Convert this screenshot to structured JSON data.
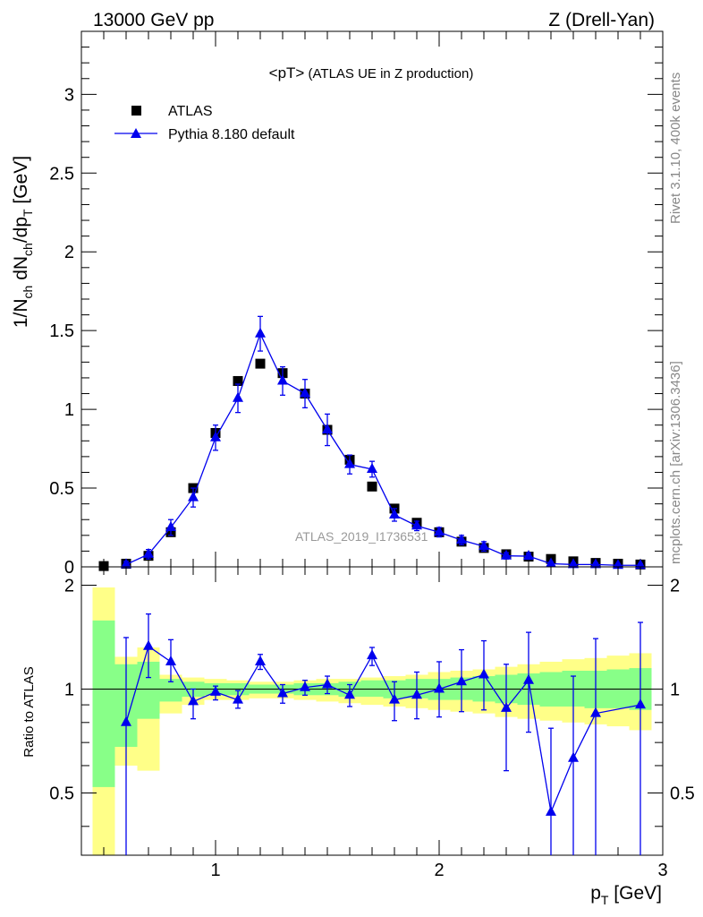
{
  "header": {
    "left": "13000 GeV pp",
    "right": "Z (Drell-Yan)"
  },
  "side_labels": {
    "rivet": "Rivet 3.1.10,  400k events",
    "mcplots": "mcplots.cern.ch [arXiv:1306.3436]"
  },
  "chart_data": [
    {
      "type": "scatter",
      "panel": "main",
      "title_main": "<pT>",
      "title_sub": " (ATLAS UE in Z production)",
      "ylabel": "1/N_ch dN_ch/dp_T [GeV]",
      "watermark": "ATLAS_2019_I1736531",
      "xlim": [
        0.4,
        3.0
      ],
      "ylim": [
        0,
        3.4
      ],
      "yticks": [
        0,
        0.5,
        1,
        1.5,
        2,
        2.5,
        3
      ],
      "ytick_labels": [
        "0",
        "0.5",
        "1",
        "1.5",
        "2",
        "2.5",
        "3"
      ],
      "legend": [
        "ATLAS",
        "Pythia 8.180 default"
      ],
      "legend_position": "top-left",
      "series": [
        {
          "name": "ATLAS",
          "marker": "square",
          "color": "#000000",
          "x": [
            0.5,
            0.6,
            0.7,
            0.8,
            0.9,
            1.0,
            1.1,
            1.2,
            1.3,
            1.4,
            1.5,
            1.6,
            1.7,
            1.8,
            1.9,
            2.0,
            2.1,
            2.2,
            2.3,
            2.4,
            2.5,
            2.6,
            2.7,
            2.8,
            2.9
          ],
          "y": [
            0.005,
            0.02,
            0.07,
            0.22,
            0.5,
            0.85,
            1.18,
            1.29,
            1.23,
            1.1,
            0.87,
            0.68,
            0.51,
            0.37,
            0.28,
            0.22,
            0.16,
            0.12,
            0.08,
            0.065,
            0.05,
            0.035,
            0.025,
            0.02,
            0.015
          ]
        },
        {
          "name": "Pythia 8.180 default",
          "marker": "triangle",
          "color": "#0000ee",
          "x": [
            0.6,
            0.7,
            0.8,
            0.9,
            1.0,
            1.1,
            1.2,
            1.3,
            1.4,
            1.5,
            1.6,
            1.7,
            1.8,
            1.9,
            2.0,
            2.1,
            2.2,
            2.3,
            2.4,
            2.5,
            2.6,
            2.7,
            2.8,
            2.9
          ],
          "y": [
            0.015,
            0.08,
            0.25,
            0.44,
            0.82,
            1.07,
            1.48,
            1.18,
            1.1,
            0.87,
            0.65,
            0.62,
            0.33,
            0.26,
            0.22,
            0.17,
            0.13,
            0.07,
            0.068,
            0.02,
            0.015,
            0.015,
            0.01,
            0.01
          ],
          "yerr": [
            0.02,
            0.03,
            0.05,
            0.06,
            0.08,
            0.09,
            0.11,
            0.09,
            0.09,
            0.1,
            0.06,
            0.05,
            0.04,
            0.03,
            0.03,
            0.03,
            0.03,
            0.02,
            0.02,
            0.01,
            0.01,
            0.01,
            0.01,
            0.01
          ]
        }
      ]
    },
    {
      "type": "scatter",
      "panel": "ratio",
      "ylabel": "Ratio to ATLAS",
      "xlabel": "p_T [GeV]",
      "xlim": [
        0.4,
        3.0
      ],
      "ylim": [
        0.33,
        2.26
      ],
      "yscale": "log",
      "xticks": [
        1,
        2,
        3
      ],
      "xtick_labels": [
        "1",
        "2",
        "3"
      ],
      "yticks": [
        0.5,
        1,
        2
      ],
      "ytick_labels": [
        "0.5",
        "1",
        "2"
      ],
      "reference_line": 1,
      "uncertainty_bands": {
        "bin_edges": [
          0.45,
          0.55,
          0.65,
          0.75,
          0.85,
          0.95,
          1.05,
          1.15,
          1.25,
          1.35,
          1.45,
          1.55,
          1.65,
          1.75,
          1.85,
          1.95,
          2.05,
          2.15,
          2.25,
          2.35,
          2.45,
          2.55,
          2.65,
          2.75,
          2.85,
          2.95
        ],
        "green": [
          [
            0.52,
            1.58
          ],
          [
            0.68,
            1.18
          ],
          [
            0.82,
            1.2
          ],
          [
            0.92,
            1.07
          ],
          [
            0.95,
            1.05
          ],
          [
            0.96,
            1.04
          ],
          [
            0.96,
            1.04
          ],
          [
            0.97,
            1.03
          ],
          [
            0.97,
            1.03
          ],
          [
            0.96,
            1.04
          ],
          [
            0.96,
            1.04
          ],
          [
            0.95,
            1.05
          ],
          [
            0.95,
            1.06
          ],
          [
            0.94,
            1.06
          ],
          [
            0.94,
            1.07
          ],
          [
            0.93,
            1.07
          ],
          [
            0.93,
            1.08
          ],
          [
            0.92,
            1.09
          ],
          [
            0.91,
            1.1
          ],
          [
            0.9,
            1.11
          ],
          [
            0.89,
            1.12
          ],
          [
            0.89,
            1.13
          ],
          [
            0.88,
            1.13
          ],
          [
            0.88,
            1.14
          ],
          [
            0.87,
            1.15
          ]
        ],
        "yellow": [
          [
            0.33,
            1.97
          ],
          [
            0.6,
            1.24
          ],
          [
            0.58,
            1.32
          ],
          [
            0.85,
            1.1
          ],
          [
            0.9,
            1.08
          ],
          [
            0.93,
            1.07
          ],
          [
            0.93,
            1.06
          ],
          [
            0.94,
            1.05
          ],
          [
            0.94,
            1.05
          ],
          [
            0.93,
            1.06
          ],
          [
            0.92,
            1.07
          ],
          [
            0.91,
            1.07
          ],
          [
            0.9,
            1.08
          ],
          [
            0.89,
            1.09
          ],
          [
            0.88,
            1.1
          ],
          [
            0.87,
            1.12
          ],
          [
            0.86,
            1.13
          ],
          [
            0.85,
            1.14
          ],
          [
            0.83,
            1.16
          ],
          [
            0.82,
            1.18
          ],
          [
            0.81,
            1.2
          ],
          [
            0.8,
            1.22
          ],
          [
            0.79,
            1.23
          ],
          [
            0.78,
            1.25
          ],
          [
            0.76,
            1.27
          ]
        ]
      },
      "series": [
        {
          "name": "Pythia 8.180 default / ATLAS",
          "color": "#0000ee",
          "x": [
            0.6,
            0.7,
            0.8,
            0.9,
            1.0,
            1.1,
            1.2,
            1.3,
            1.4,
            1.5,
            1.6,
            1.7,
            1.8,
            1.9,
            2.0,
            2.1,
            2.2,
            2.3,
            2.4,
            2.5,
            2.6,
            2.7,
            2.9
          ],
          "y": [
            0.8,
            1.33,
            1.2,
            0.92,
            0.98,
            0.93,
            1.2,
            0.97,
            1.01,
            1.03,
            0.96,
            1.25,
            0.93,
            0.96,
            1.0,
            1.05,
            1.1,
            0.88,
            1.06,
            0.44,
            0.63,
            0.85,
            0.9
          ],
          "ylo": [
            0.2,
            1.08,
            1.05,
            0.82,
            0.93,
            0.88,
            1.14,
            0.91,
            0.96,
            0.97,
            0.89,
            1.17,
            0.81,
            0.82,
            0.83,
            0.86,
            0.87,
            0.58,
            0.75,
            0.2,
            0.2,
            0.2,
            0.2
          ],
          "yhi": [
            1.41,
            1.65,
            1.39,
            1.0,
            1.02,
            0.99,
            1.26,
            1.03,
            1.06,
            1.09,
            1.03,
            1.32,
            1.05,
            1.12,
            1.2,
            1.3,
            1.38,
            1.18,
            1.46,
            0.77,
            1.09,
            1.4,
            1.56
          ]
        }
      ]
    }
  ]
}
